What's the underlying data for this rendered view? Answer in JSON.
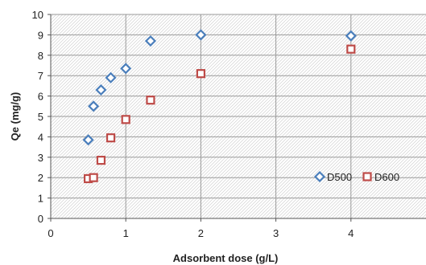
{
  "chart_data": {
    "type": "scatter",
    "xlabel": "Adsorbent dose (g/L)",
    "ylabel": "Qe (mg/g)",
    "xlim": [
      0,
      5
    ],
    "ylim": [
      0,
      10
    ],
    "xticks": [
      0,
      1,
      2,
      3,
      4
    ],
    "yticks": [
      0,
      1,
      2,
      3,
      4,
      5,
      6,
      7,
      8,
      9,
      10
    ],
    "grid": true,
    "legend_position": "right",
    "series": [
      {
        "name": "D500",
        "marker": "diamond",
        "color": "#4a7ebb",
        "x": [
          0.5,
          0.57,
          0.67,
          0.8,
          1.0,
          1.33,
          2.0,
          4.0
        ],
        "y": [
          3.85,
          5.5,
          6.3,
          6.9,
          7.35,
          8.7,
          9.0,
          8.95
        ]
      },
      {
        "name": "D600",
        "marker": "square",
        "color": "#be4b48",
        "x": [
          0.5,
          0.57,
          0.67,
          0.8,
          1.0,
          1.33,
          2.0,
          4.0
        ],
        "y": [
          1.95,
          2.0,
          2.85,
          3.95,
          4.85,
          5.8,
          7.1,
          8.3
        ]
      }
    ]
  }
}
